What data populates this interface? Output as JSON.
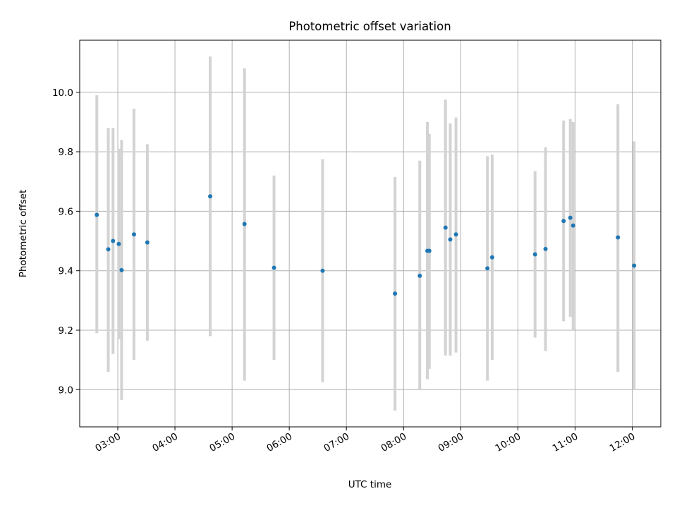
{
  "chart_data": {
    "type": "scatter",
    "title": "Photometric offset variation",
    "xlabel": "UTC time",
    "ylabel": "Photometric offset",
    "x_is_time": true,
    "xlim": [
      "02:20",
      "12:30"
    ],
    "ylim": [
      8.875,
      10.175
    ],
    "x_ticks": [
      "03:00",
      "04:00",
      "05:00",
      "06:00",
      "07:00",
      "08:00",
      "09:00",
      "10:00",
      "11:00",
      "12:00"
    ],
    "y_ticks": [
      9.0,
      9.2,
      9.4,
      9.6,
      9.8,
      10.0
    ],
    "grid": true,
    "colors": {
      "marker": "#1f77b4",
      "errorbar": "#d3d3d3",
      "grid": "#b0b0b0"
    },
    "points": [
      {
        "t": "02:38",
        "y": 9.588,
        "lo": 9.19,
        "hi": 9.99
      },
      {
        "t": "02:50",
        "y": 9.472,
        "lo": 9.06,
        "hi": 9.88
      },
      {
        "t": "02:55",
        "y": 9.5,
        "lo": 9.12,
        "hi": 9.88
      },
      {
        "t": "03:01",
        "y": 9.49,
        "lo": 9.17,
        "hi": 9.81
      },
      {
        "t": "03:04",
        "y": 9.402,
        "lo": 8.965,
        "hi": 9.84
      },
      {
        "t": "03:17",
        "y": 9.522,
        "lo": 9.1,
        "hi": 9.945
      },
      {
        "t": "03:31",
        "y": 9.495,
        "lo": 9.165,
        "hi": 9.825
      },
      {
        "t": "04:37",
        "y": 9.65,
        "lo": 9.18,
        "hi": 10.12
      },
      {
        "t": "05:13",
        "y": 9.557,
        "lo": 9.03,
        "hi": 10.08
      },
      {
        "t": "05:44",
        "y": 9.41,
        "lo": 9.1,
        "hi": 9.72
      },
      {
        "t": "06:35",
        "y": 9.4,
        "lo": 9.025,
        "hi": 9.775
      },
      {
        "t": "07:51",
        "y": 9.323,
        "lo": 8.93,
        "hi": 9.715
      },
      {
        "t": "08:17",
        "y": 9.383,
        "lo": 9.0,
        "hi": 9.77
      },
      {
        "t": "08:25",
        "y": 9.467,
        "lo": 9.035,
        "hi": 9.9
      },
      {
        "t": "08:27",
        "y": 9.467,
        "lo": 9.07,
        "hi": 9.86
      },
      {
        "t": "08:44",
        "y": 9.545,
        "lo": 9.115,
        "hi": 9.975
      },
      {
        "t": "08:49",
        "y": 9.505,
        "lo": 9.115,
        "hi": 9.895
      },
      {
        "t": "08:55",
        "y": 9.522,
        "lo": 9.125,
        "hi": 9.915
      },
      {
        "t": "09:28",
        "y": 9.408,
        "lo": 9.03,
        "hi": 9.785
      },
      {
        "t": "09:33",
        "y": 9.445,
        "lo": 9.1,
        "hi": 9.79
      },
      {
        "t": "10:18",
        "y": 9.455,
        "lo": 9.175,
        "hi": 9.735
      },
      {
        "t": "10:29",
        "y": 9.473,
        "lo": 9.13,
        "hi": 9.815
      },
      {
        "t": "10:48",
        "y": 9.567,
        "lo": 9.23,
        "hi": 9.905
      },
      {
        "t": "10:55",
        "y": 9.578,
        "lo": 9.245,
        "hi": 9.91
      },
      {
        "t": "10:58",
        "y": 9.552,
        "lo": 9.2,
        "hi": 9.9
      },
      {
        "t": "11:45",
        "y": 9.512,
        "lo": 9.06,
        "hi": 9.96
      },
      {
        "t": "12:02",
        "y": 9.417,
        "lo": 9.0,
        "hi": 9.835
      }
    ]
  }
}
